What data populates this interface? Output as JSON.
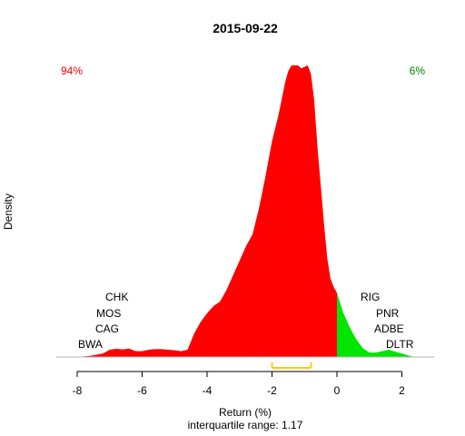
{
  "chart_data": {
    "type": "area",
    "title": "2015-09-22",
    "xlabel": "Return (%)",
    "ylabel": "Density",
    "subtitle": "interquartile range: 1.17",
    "xlim": [
      -9,
      3
    ],
    "ylim": [
      0,
      1
    ],
    "xticks": [
      "-8",
      "-6",
      "-4",
      "-2",
      "0",
      "2"
    ],
    "xtick_values": [
      -8,
      -6,
      -4,
      -2,
      0,
      2
    ],
    "grid": false,
    "negative_share": "94%",
    "positive_share": "6%",
    "colors": {
      "negative": "#ff0000",
      "positive": "#00e600",
      "negative_text": "#ff0000",
      "positive_text": "#008000",
      "iqr": "#ffcc00",
      "baseline": "#b3b3b3"
    },
    "iqr_range": [
      -2.0,
      -0.8
    ],
    "density": {
      "x": [
        -8.0,
        -7.6,
        -7.2,
        -7.0,
        -6.8,
        -6.6,
        -6.4,
        -6.2,
        -6.0,
        -5.8,
        -5.6,
        -5.4,
        -5.2,
        -5.0,
        -4.8,
        -4.6,
        -4.4,
        -4.2,
        -4.0,
        -3.8,
        -3.6,
        -3.4,
        -3.2,
        -3.0,
        -2.8,
        -2.6,
        -2.4,
        -2.2,
        -2.0,
        -1.8,
        -1.6,
        -1.5,
        -1.4,
        -1.3,
        -1.2,
        -1.1,
        -1.0,
        -0.9,
        -0.8,
        -0.7,
        -0.6,
        -0.5,
        -0.4,
        -0.3,
        -0.2,
        -0.1,
        0.0,
        0.2,
        0.4,
        0.6,
        0.8,
        1.0,
        1.2,
        1.4,
        1.6,
        1.8,
        2.0,
        2.2,
        2.4
      ],
      "y": [
        0.0,
        0.004,
        0.012,
        0.025,
        0.028,
        0.026,
        0.029,
        0.02,
        0.02,
        0.025,
        0.027,
        0.027,
        0.025,
        0.023,
        0.02,
        0.025,
        0.08,
        0.12,
        0.15,
        0.175,
        0.19,
        0.23,
        0.28,
        0.33,
        0.38,
        0.42,
        0.51,
        0.62,
        0.74,
        0.83,
        0.94,
        0.98,
        1.0,
        1.0,
        1.0,
        0.99,
        0.995,
        1.0,
        0.97,
        0.88,
        0.72,
        0.59,
        0.46,
        0.34,
        0.27,
        0.24,
        0.22,
        0.15,
        0.1,
        0.06,
        0.03,
        0.015,
        0.015,
        0.02,
        0.025,
        0.018,
        0.012,
        0.005,
        0.0
      ]
    },
    "labels_left": [
      "CHK",
      "MOS",
      "CAG",
      "BWA"
    ],
    "labels_right": [
      "RIG",
      "PNR",
      "ADBE",
      "DLTR"
    ]
  }
}
